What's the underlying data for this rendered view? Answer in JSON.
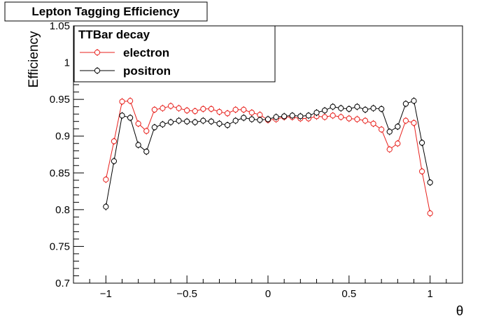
{
  "chart_data": {
    "type": "scatter",
    "title": "Lepton Tagging Efficiency",
    "xlabel": "θ",
    "ylabel": "Efficiency",
    "xlim": [
      -1.2,
      1.2
    ],
    "ylim": [
      0.7,
      1.05
    ],
    "x_ticks": [
      -1,
      -0.5,
      0,
      0.5,
      1
    ],
    "x_tick_labels": [
      "−1",
      "−0.5",
      "0",
      "0.5",
      "1"
    ],
    "y_ticks": [
      0.7,
      0.75,
      0.8,
      0.85,
      0.9,
      0.95,
      1,
      1.05
    ],
    "y_tick_labels": [
      "0.7",
      "0.75",
      "0.8",
      "0.85",
      "0.9",
      "0.95",
      "1",
      "1.05"
    ],
    "legend_title": "TTBar decay",
    "legend_position": "top-left",
    "grid": false,
    "x": [
      -1.0,
      -0.95,
      -0.9,
      -0.85,
      -0.8,
      -0.75,
      -0.7,
      -0.65,
      -0.6,
      -0.55,
      -0.5,
      -0.45,
      -0.4,
      -0.35,
      -0.3,
      -0.25,
      -0.2,
      -0.15,
      -0.1,
      -0.05,
      0.0,
      0.05,
      0.1,
      0.15,
      0.2,
      0.25,
      0.3,
      0.35,
      0.4,
      0.45,
      0.5,
      0.55,
      0.6,
      0.65,
      0.7,
      0.75,
      0.8,
      0.85,
      0.9,
      0.95,
      1.0
    ],
    "series": [
      {
        "name": "electron",
        "color": "#e8201c",
        "values": [
          0.841,
          0.893,
          0.947,
          0.948,
          0.917,
          0.907,
          0.936,
          0.938,
          0.941,
          0.938,
          0.935,
          0.934,
          0.937,
          0.937,
          0.933,
          0.931,
          0.936,
          0.936,
          0.932,
          0.929,
          0.922,
          0.923,
          0.926,
          0.926,
          0.924,
          0.924,
          0.927,
          0.926,
          0.928,
          0.926,
          0.924,
          0.923,
          0.921,
          0.917,
          0.909,
          0.882,
          0.89,
          0.921,
          0.918,
          0.852,
          0.795
        ],
        "errors": [
          0.004,
          0.003,
          0.003,
          0.003,
          0.003,
          0.003,
          0.002,
          0.002,
          0.002,
          0.002,
          0.002,
          0.002,
          0.002,
          0.002,
          0.002,
          0.002,
          0.002,
          0.002,
          0.002,
          0.002,
          0.002,
          0.002,
          0.002,
          0.002,
          0.002,
          0.002,
          0.002,
          0.002,
          0.002,
          0.002,
          0.002,
          0.002,
          0.002,
          0.002,
          0.003,
          0.003,
          0.003,
          0.003,
          0.003,
          0.004,
          0.005
        ]
      },
      {
        "name": "positron",
        "color": "#000000",
        "values": [
          0.804,
          0.866,
          0.928,
          0.925,
          0.888,
          0.879,
          0.912,
          0.916,
          0.919,
          0.921,
          0.92,
          0.919,
          0.921,
          0.92,
          0.917,
          0.915,
          0.921,
          0.925,
          0.923,
          0.922,
          0.923,
          0.926,
          0.927,
          0.928,
          0.927,
          0.928,
          0.932,
          0.935,
          0.94,
          0.938,
          0.937,
          0.94,
          0.936,
          0.938,
          0.937,
          0.906,
          0.913,
          0.944,
          0.948,
          0.891,
          0.837
        ],
        "errors": [
          0.005,
          0.004,
          0.003,
          0.003,
          0.003,
          0.003,
          0.002,
          0.002,
          0.002,
          0.002,
          0.002,
          0.002,
          0.002,
          0.002,
          0.002,
          0.002,
          0.002,
          0.002,
          0.002,
          0.002,
          0.002,
          0.002,
          0.002,
          0.002,
          0.002,
          0.002,
          0.002,
          0.002,
          0.002,
          0.002,
          0.002,
          0.002,
          0.002,
          0.002,
          0.003,
          0.003,
          0.003,
          0.003,
          0.003,
          0.004,
          0.004
        ]
      }
    ]
  }
}
